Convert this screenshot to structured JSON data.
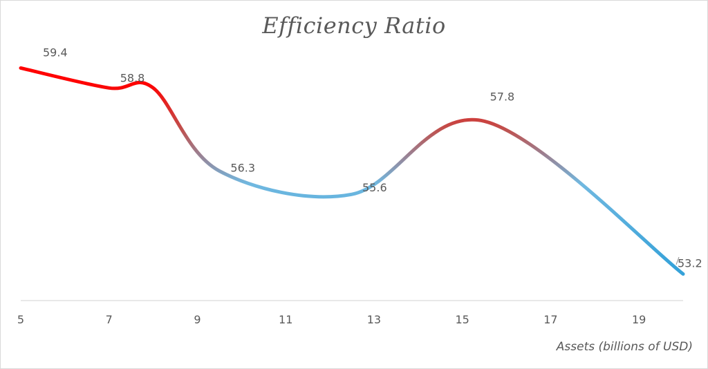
{
  "chart_data": {
    "type": "line",
    "title": "Efficiency Ratio",
    "xlabel": "Assets (billions of USD)",
    "ylabel": "",
    "x": [
      5,
      7,
      8,
      9.5,
      12.5,
      15.5,
      20
    ],
    "values": [
      59.4,
      58.8,
      58.8,
      56.3,
      55.6,
      57.8,
      53.2
    ],
    "data_labels": [
      {
        "x": 5,
        "y": 59.4,
        "text": "59.4"
      },
      {
        "x": 7,
        "y": 58.8,
        "text": "58.8"
      },
      {
        "x": 9.5,
        "y": 56.3,
        "text": "56.3"
      },
      {
        "x": 12.5,
        "y": 55.6,
        "text": "55.6"
      },
      {
        "x": 15.5,
        "y": 57.8,
        "text": "57.8"
      },
      {
        "x": 20,
        "y": 53.2,
        "text": "53.2"
      }
    ],
    "xticks": [
      "5",
      "7",
      "9",
      "11",
      "13",
      "15",
      "17",
      "19"
    ],
    "xlim": [
      5,
      20
    ],
    "ylim": [
      52.4,
      60.2
    ],
    "smooth": true,
    "gridlines": false,
    "legend": "none",
    "colors": {
      "high": "#ff0000",
      "mid": "#c0504d",
      "low": "#70b8e0",
      "end": "#36a2d9",
      "axis": "#d9d9d9",
      "text": "#595959"
    }
  }
}
